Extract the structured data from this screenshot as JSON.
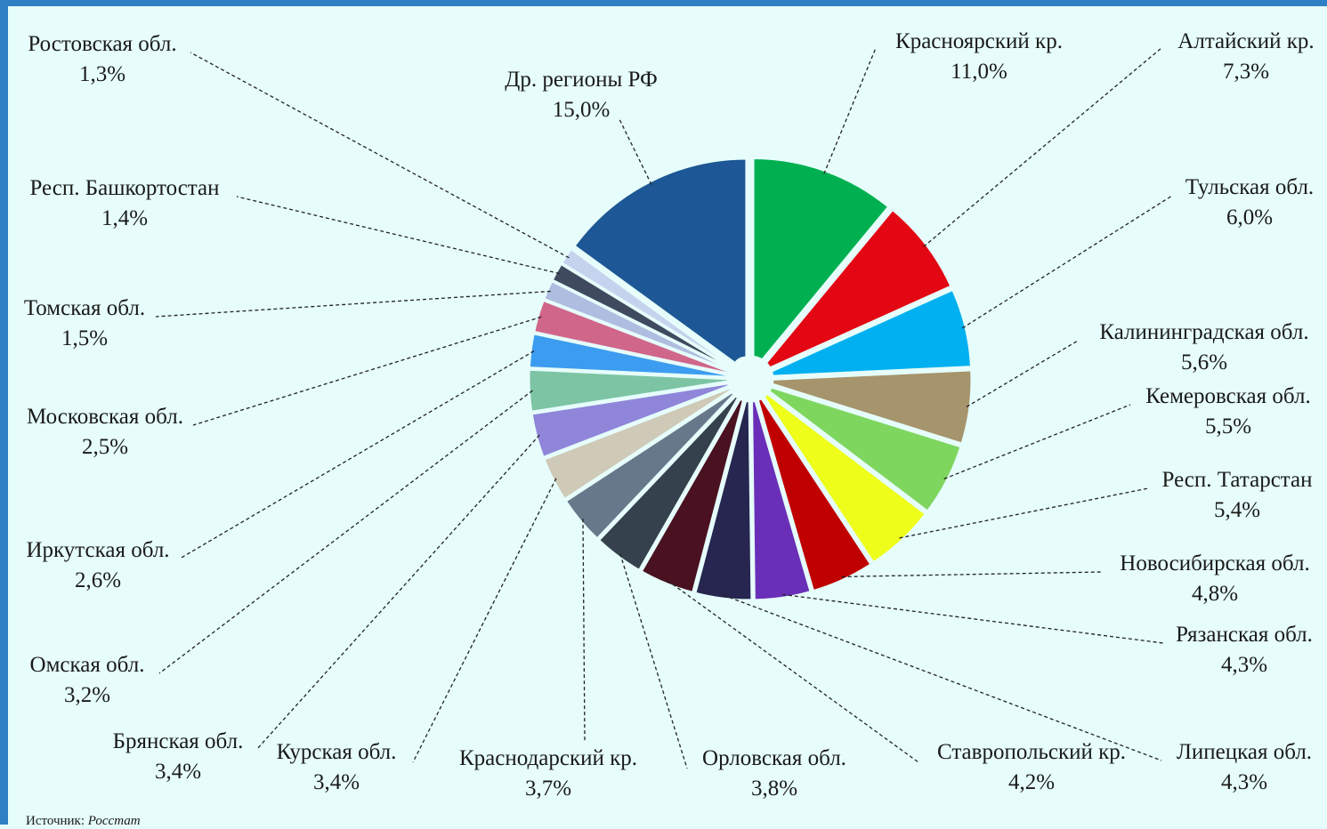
{
  "source": {
    "label": "Источник:",
    "name": "Росстат"
  },
  "chart_data": {
    "type": "pie",
    "title": "",
    "slices": [
      {
        "name": "Красноярский кр.",
        "value_label": "11,0%",
        "value": 11.0,
        "color": "#00b050"
      },
      {
        "name": "Алтайский кр.",
        "value_label": "7,3%",
        "value": 7.3,
        "color": "#e30613"
      },
      {
        "name": "Тульская обл.",
        "value_label": "6,0%",
        "value": 6.0,
        "color": "#00b0f0"
      },
      {
        "name": "Калининградская обл.",
        "value_label": "5,6%",
        "value": 5.6,
        "color": "#a6946c"
      },
      {
        "name": "Кемеровская обл.",
        "value_label": "5,5%",
        "value": 5.5,
        "color": "#7fd65f"
      },
      {
        "name": "Респ. Татарстан",
        "value_label": "5,4%",
        "value": 5.4,
        "color": "#eefd1a"
      },
      {
        "name": "Новосибирская обл.",
        "value_label": "4,8%",
        "value": 4.8,
        "color": "#c00000"
      },
      {
        "name": "Рязанская обл.",
        "value_label": "4,3%",
        "value": 4.3,
        "color": "#6a2fb8"
      },
      {
        "name": "Липецкая обл.",
        "value_label": "4,3%",
        "value": 4.3,
        "color": "#262650"
      },
      {
        "name": "Ставропольский кр.",
        "value_label": "4,2%",
        "value": 4.2,
        "color": "#4a1220"
      },
      {
        "name": "Орловская обл.",
        "value_label": "3,8%",
        "value": 3.8,
        "color": "#35414d"
      },
      {
        "name": "Краснодарский кр.",
        "value_label": "3,7%",
        "value": 3.7,
        "color": "#67788b"
      },
      {
        "name": "Курская обл.",
        "value_label": "3,4%",
        "value": 3.4,
        "color": "#cfc9b7"
      },
      {
        "name": "Брянская обл.",
        "value_label": "3,4%",
        "value": 3.4,
        "color": "#8f86da"
      },
      {
        "name": "Омская обл.",
        "value_label": "3,2%",
        "value": 3.2,
        "color": "#7cc4a4"
      },
      {
        "name": "Иркутская обл.",
        "value_label": "2,6%",
        "value": 2.6,
        "color": "#3c9cf0"
      },
      {
        "name": "Московская обл.",
        "value_label": "2,5%",
        "value": 2.5,
        "color": "#d0668a"
      },
      {
        "name": "Томская обл.",
        "value_label": "1,5%",
        "value": 1.5,
        "color": "#aebde0"
      },
      {
        "name": "Респ. Башкортостан",
        "value_label": "1,4%",
        "value": 1.4,
        "color": "#404a5e"
      },
      {
        "name": "Ростовская обл.",
        "value_label": "1,3%",
        "value": 1.3,
        "color": "#c5d3ee"
      },
      {
        "name": "Др. регионы РФ",
        "value_label": "15,0%",
        "value": 15.0,
        "color": "#1d5795"
      }
    ],
    "legend": "none",
    "labels": "outside with dashed leader lines"
  }
}
